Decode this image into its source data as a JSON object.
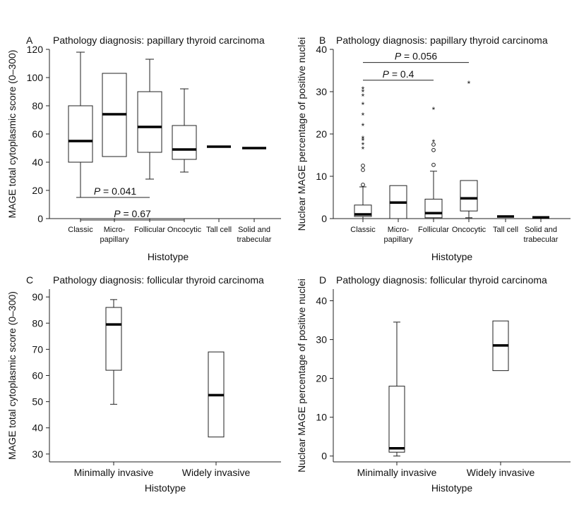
{
  "chart_data": [
    {
      "panel_label": "A",
      "type": "box",
      "title": "Pathology diagnosis: papillary thyroid carcinoma",
      "xlabel": "Histotype",
      "ylabel": "MAGE total cytoplasmic score (0–300)",
      "ylim": [
        0,
        120
      ],
      "yticks": [
        0,
        20,
        40,
        60,
        80,
        100,
        120
      ],
      "categories": [
        [
          "Classic"
        ],
        [
          "Micro-",
          "papillary"
        ],
        [
          "Follicular"
        ],
        [
          "Oncocytic"
        ],
        [
          "Tall cell"
        ],
        [
          "Solid and",
          "trabecular"
        ]
      ],
      "boxes": [
        {
          "min": 15,
          "q1": 40,
          "median": 55,
          "q3": 80,
          "max": 118,
          "outliers": [],
          "extremes": []
        },
        {
          "min": 44,
          "q1": 44,
          "median": 74,
          "q3": 103,
          "max": 103,
          "outliers": [],
          "extremes": []
        },
        {
          "min": 28,
          "q1": 47,
          "median": 65,
          "q3": 90,
          "max": 113,
          "outliers": [],
          "extremes": []
        },
        {
          "min": 33,
          "q1": 42,
          "median": 49,
          "q3": 66,
          "max": 92,
          "outliers": [],
          "extremes": []
        },
        {
          "min": 51,
          "q1": 51,
          "median": 51,
          "q3": 51,
          "max": 51,
          "outliers": [],
          "extremes": []
        },
        {
          "min": 50,
          "q1": 50,
          "median": 50,
          "q3": 50,
          "max": 50,
          "outliers": [],
          "extremes": []
        }
      ],
      "annotations": [
        {
          "text": "P = 0.041",
          "from": 0,
          "to": 2,
          "y": 15
        },
        {
          "text": "P = 0.67",
          "from": 0,
          "to": 3,
          "y": -1
        }
      ]
    },
    {
      "panel_label": "B",
      "type": "box",
      "title": "Pathology diagnosis: papillary thyroid carcinoma",
      "xlabel": "Histotype",
      "ylabel": "Nuclear MAGE percentage of positive nuclei",
      "ylim": [
        0,
        40
      ],
      "yticks": [
        0,
        10,
        20,
        30,
        40
      ],
      "categories": [
        [
          "Classic"
        ],
        [
          "Micro-",
          "papillary"
        ],
        [
          "Follicular"
        ],
        [
          "Oncocytic"
        ],
        [
          "Tall cell"
        ],
        [
          "Solid and",
          "trabecular"
        ]
      ],
      "boxes": [
        {
          "min": 0,
          "q1": 0.5,
          "median": 1,
          "q3": 3.2,
          "max": 7.5,
          "outliers": [
            8,
            11.5,
            12.5
          ],
          "extremes": [
            16.5,
            17.5,
            18.5,
            19,
            22,
            24.5,
            27,
            29,
            30,
            30.7
          ]
        },
        {
          "min": 0,
          "q1": 0,
          "median": 3.8,
          "q3": 7.8,
          "max": 7.8,
          "outliers": [],
          "extremes": []
        },
        {
          "min": 0,
          "q1": 0.2,
          "median": 1.3,
          "q3": 4.6,
          "max": 11.2,
          "outliers": [
            12.7,
            16.2,
            17.5
          ],
          "extremes": [
            18.2,
            25.8
          ]
        },
        {
          "min": 0.2,
          "q1": 1.8,
          "median": 4.8,
          "q3": 9,
          "max": 9,
          "outliers": [],
          "extremes": [
            32
          ]
        },
        {
          "min": 0.5,
          "q1": 0.5,
          "median": 0.5,
          "q3": 0.5,
          "max": 0.5,
          "outliers": [],
          "extremes": []
        },
        {
          "min": 0.3,
          "q1": 0.3,
          "median": 0.3,
          "q3": 0.3,
          "max": 0.3,
          "outliers": [],
          "extremes": []
        }
      ],
      "annotations": [
        {
          "text": "P = 0.056",
          "from": 0,
          "to": 3,
          "y": 36.9
        },
        {
          "text": "P = 0.4",
          "from": 0,
          "to": 2,
          "y": 32.7
        }
      ]
    },
    {
      "panel_label": "C",
      "type": "box",
      "title": "Pathology diagnosis: follicular thyroid carcinoma",
      "xlabel": "Histotype",
      "ylabel": "MAGE total cytoplasmic score (0–300)",
      "ylim": [
        27,
        93
      ],
      "yticks": [
        30,
        40,
        50,
        60,
        70,
        80,
        90
      ],
      "categories": [
        [
          "Minimally invasive"
        ],
        [
          "Widely invasive"
        ]
      ],
      "boxes": [
        {
          "min": 49,
          "q1": 62,
          "median": 79.5,
          "q3": 86,
          "max": 89,
          "outliers": [],
          "extremes": []
        },
        {
          "min": 36.5,
          "q1": 36.5,
          "median": 52.5,
          "q3": 69,
          "max": 69,
          "outliers": [],
          "extremes": []
        }
      ],
      "annotations": []
    },
    {
      "panel_label": "D",
      "type": "box",
      "title": "Pathology diagnosis: follicular thyroid carcinoma",
      "xlabel": "Histotype",
      "ylabel": "Nuclear MAGE percentage of positive nuclei",
      "ylim": [
        -1.5,
        43
      ],
      "yticks": [
        0,
        10,
        20,
        30,
        40
      ],
      "categories": [
        [
          "Minimally invasive"
        ],
        [
          "Widely invasive"
        ]
      ],
      "boxes": [
        {
          "min": 0,
          "q1": 1,
          "median": 2,
          "q3": 18,
          "max": 34.5,
          "outliers": [],
          "extremes": []
        },
        {
          "min": 22,
          "q1": 22,
          "median": 28.5,
          "q3": 34.8,
          "max": 34.8,
          "outliers": [],
          "extremes": []
        }
      ],
      "annotations": []
    }
  ]
}
